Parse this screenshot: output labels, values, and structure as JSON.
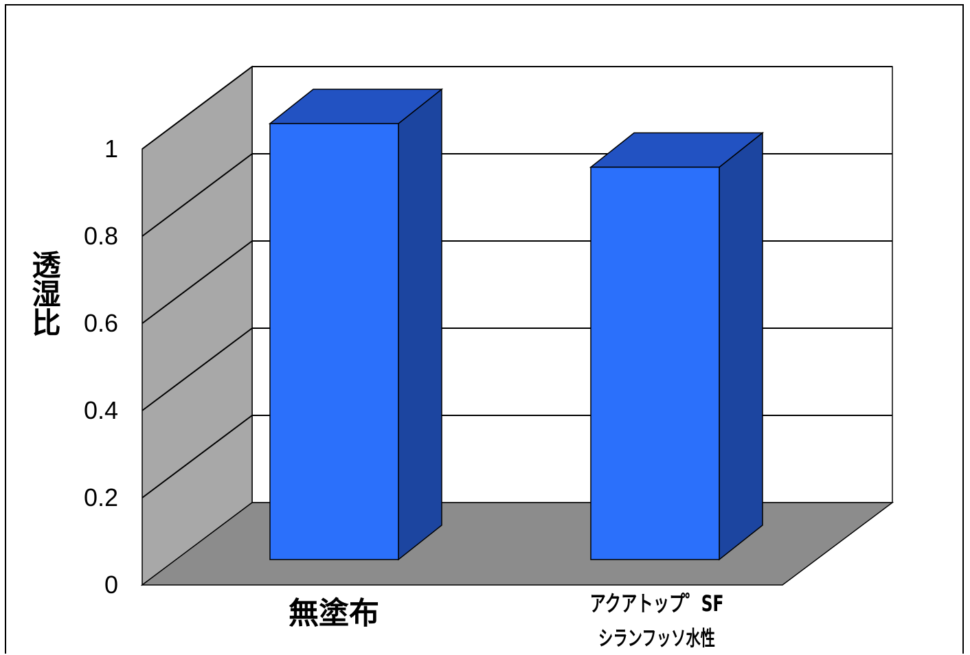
{
  "chart_data": {
    "type": "bar",
    "style": "3d-column",
    "categories": [
      "無塗布",
      "アクアトップSF シランフッソ水性"
    ],
    "category_lines": [
      [
        "無塗布"
      ],
      [
        "アクアトップ゜SF",
        "シランフッソ水性"
      ]
    ],
    "values": [
      1.0,
      0.9
    ],
    "ylabel": "透湿比",
    "ylim": [
      0,
      1
    ],
    "yticks": [
      "0",
      "0.2",
      "0.4",
      "0.6",
      "0.8",
      "1"
    ],
    "grid": true,
    "legend": "none",
    "colors": {
      "bar_front": "#2b70fb",
      "bar_top": "#2252c2",
      "bar_side": "#1c45a0",
      "wall": "#a8a8a8",
      "floor": "#8c8c8c",
      "back_panel": "#ffffff",
      "gridline": "#000000"
    }
  }
}
